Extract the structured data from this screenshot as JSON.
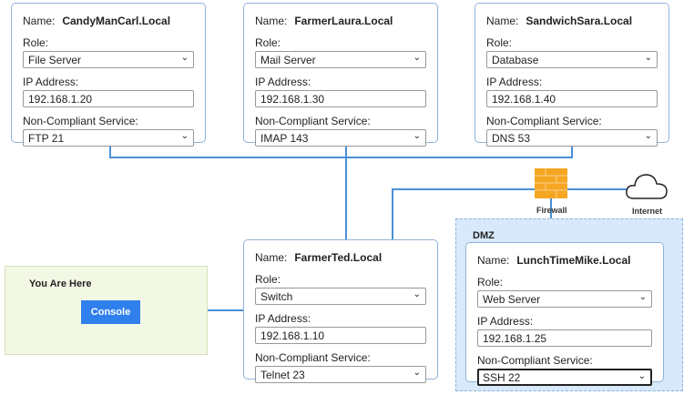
{
  "labels": {
    "name": "Name:",
    "role": "Role:",
    "ip": "IP Address:",
    "service": "Non-Compliant Service:"
  },
  "hosts": [
    {
      "name": "CandyManCarl.Local",
      "role": "File Server",
      "ip": "192.168.1.20",
      "service": "FTP 21"
    },
    {
      "name": "FarmerLaura.Local",
      "role": "Mail Server",
      "ip": "192.168.1.30",
      "service": "IMAP 143"
    },
    {
      "name": "SandwichSara.Local",
      "role": "Database",
      "ip": "192.168.1.40",
      "service": "DNS 53"
    },
    {
      "name": "FarmerTed.Local",
      "role": "Switch",
      "ip": "192.168.1.10",
      "service": "Telnet 23"
    },
    {
      "name": "LunchTimeMike.Local",
      "role": "Web Server",
      "ip": "192.168.1.25",
      "service": "SSH 22"
    }
  ],
  "dmz_label": "DMZ",
  "firewall_label": "Firewall",
  "internet_label": "Internet",
  "you_are_here": "You Are Here",
  "console_label": "Console",
  "colors": {
    "accent": "#2f80ed",
    "line": "#4a90d9",
    "firewall": "#f5a623"
  }
}
